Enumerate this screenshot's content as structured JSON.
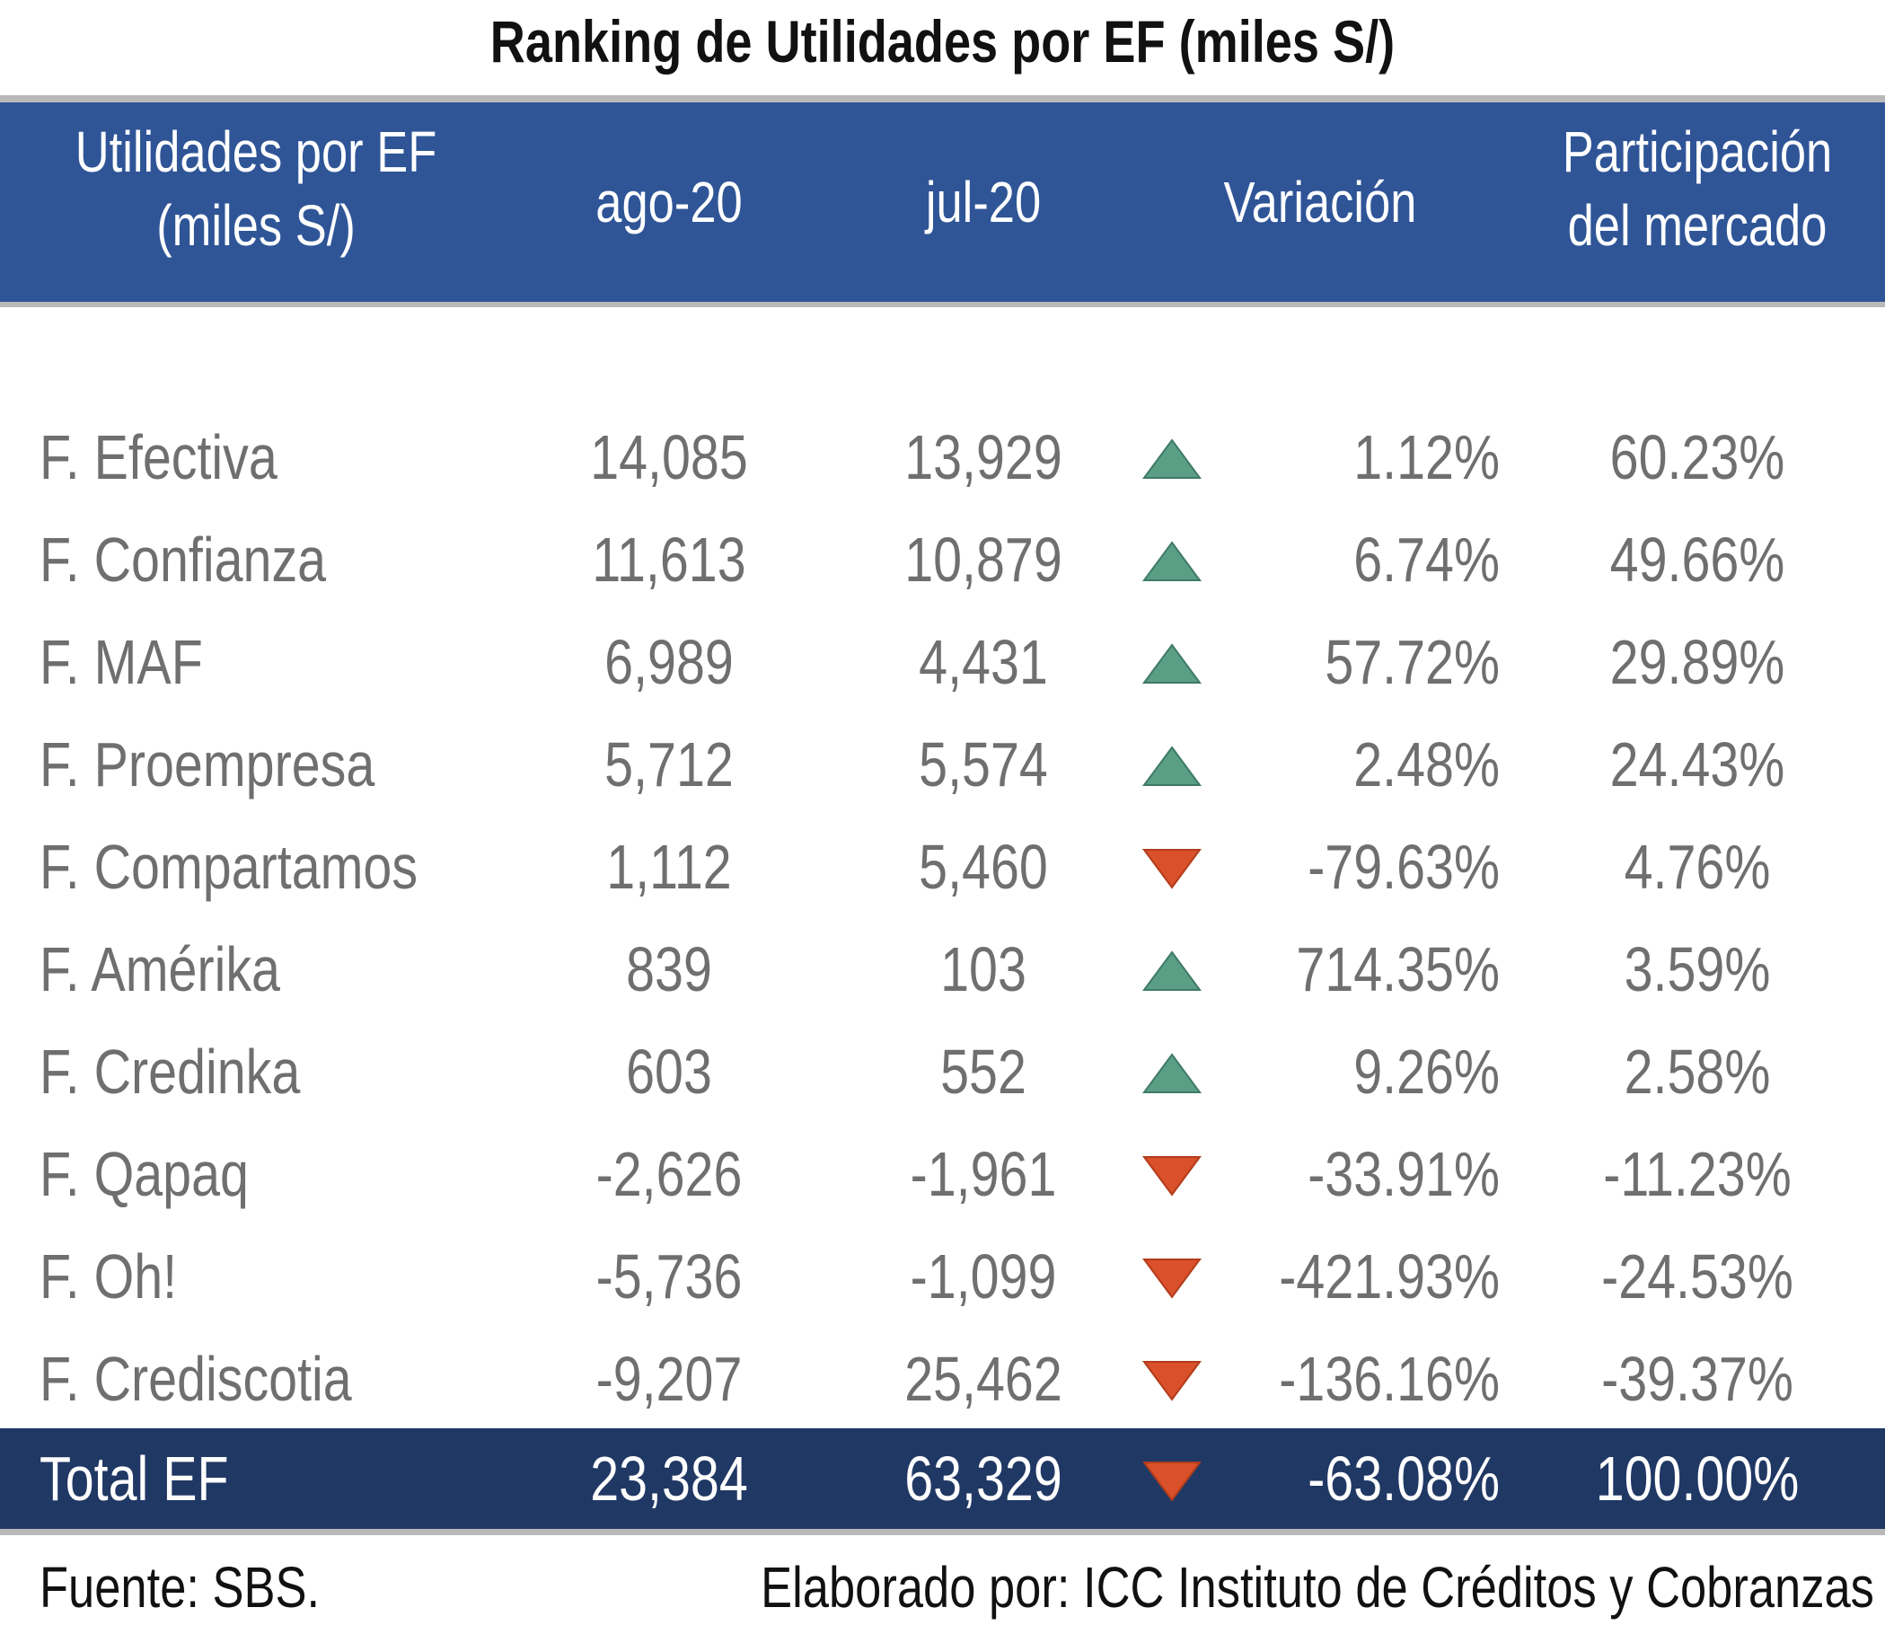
{
  "title": "Ranking de Utilidades por EF (miles S/)",
  "header": {
    "entity_line1": "Utilidades por EF",
    "entity_line2": "(miles S/)",
    "aug": "ago-20",
    "jul": "jul-20",
    "variation": "Variación",
    "share_line1": "Participación",
    "share_line2": "del mercado"
  },
  "colors": {
    "header_bg": "#2f5597",
    "total_bg": "#203864",
    "up": "#5a9e86",
    "down": "#d9502a",
    "text": "#6f6f6f"
  },
  "rows": [
    {
      "name": "F. Efectiva",
      "aug": "14,085",
      "jul": "13,929",
      "trend": "up",
      "variation": "1.12%",
      "share": "60.23%"
    },
    {
      "name": "F. Confianza",
      "aug": "11,613",
      "jul": "10,879",
      "trend": "up",
      "variation": "6.74%",
      "share": "49.66%"
    },
    {
      "name": "F. MAF",
      "aug": "6,989",
      "jul": "4,431",
      "trend": "up",
      "variation": "57.72%",
      "share": "29.89%"
    },
    {
      "name": "F. Proempresa",
      "aug": "5,712",
      "jul": "5,574",
      "trend": "up",
      "variation": "2.48%",
      "share": "24.43%"
    },
    {
      "name": "F. Compartamos",
      "aug": "1,112",
      "jul": "5,460",
      "trend": "down",
      "variation": "-79.63%",
      "share": "4.76%"
    },
    {
      "name": "F. Amérika",
      "aug": "839",
      "jul": "103",
      "trend": "up",
      "variation": "714.35%",
      "share": "3.59%"
    },
    {
      "name": "F. Credinka",
      "aug": "603",
      "jul": "552",
      "trend": "up",
      "variation": "9.26%",
      "share": "2.58%"
    },
    {
      "name": "F. Qapaq",
      "aug": "-2,626",
      "jul": "-1,961",
      "trend": "down",
      "variation": "-33.91%",
      "share": "-11.23%"
    },
    {
      "name": "F. Oh!",
      "aug": "-5,736",
      "jul": "-1,099",
      "trend": "down",
      "variation": "-421.93%",
      "share": "-24.53%"
    },
    {
      "name": "F. Crediscotia",
      "aug": "-9,207",
      "jul": "25,462",
      "trend": "down",
      "variation": "-136.16%",
      "share": "-39.37%"
    }
  ],
  "total": {
    "name": "Total EF",
    "aug": "23,384",
    "jul": "63,329",
    "trend": "down",
    "variation": "-63.08%",
    "share": "100.00%"
  },
  "footer": {
    "source": "Fuente: SBS.",
    "author": "Elaborado por: ICC Instituto de Créditos y Cobranzas"
  }
}
